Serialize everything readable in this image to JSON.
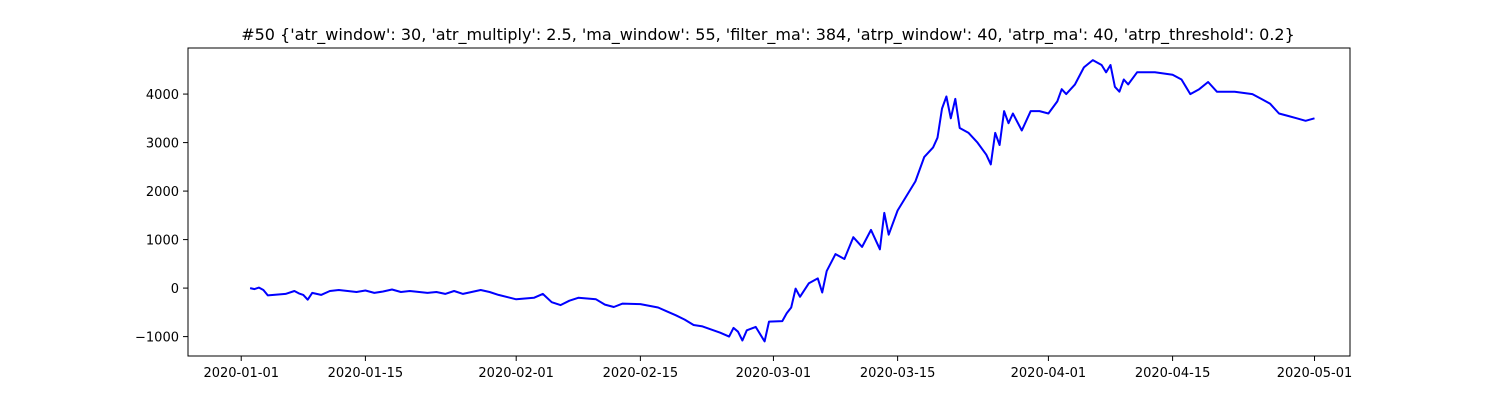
{
  "chart_data": {
    "type": "line",
    "title": "#50 {'atr_window': 30, 'atr_multiply': 2.5, 'ma_window': 55, 'filter_ma': 384, 'atrp_window': 40, 'atrp_ma': 40, 'atrp_threshold': 0.2}",
    "xlabel": "",
    "ylabel": "",
    "grid": false,
    "legend": "none",
    "line_color": "#0000ff",
    "xlim": [
      "2019-12-26",
      "2020-05-05"
    ],
    "ylim": [
      -1400,
      4950
    ],
    "x_ticks": [
      "2020-01-01",
      "2020-01-15",
      "2020-02-01",
      "2020-02-15",
      "2020-03-01",
      "2020-03-15",
      "2020-04-01",
      "2020-04-15",
      "2020-05-01"
    ],
    "y_ticks": [
      -1000,
      0,
      1000,
      2000,
      3000,
      4000
    ],
    "series": [
      {
        "points": [
          [
            "2020-01-02",
            0
          ],
          [
            "2020-01-02",
            -20
          ],
          [
            "2020-01-03",
            10
          ],
          [
            "2020-01-03",
            -40
          ],
          [
            "2020-01-04",
            -150
          ],
          [
            "2020-01-06",
            -120
          ],
          [
            "2020-01-07",
            -60
          ],
          [
            "2020-01-07",
            -110
          ],
          [
            "2020-01-08",
            -140
          ],
          [
            "2020-01-08",
            -240
          ],
          [
            "2020-01-09",
            -100
          ],
          [
            "2020-01-10",
            -140
          ],
          [
            "2020-01-11",
            -60
          ],
          [
            "2020-01-12",
            -40
          ],
          [
            "2020-01-13",
            -60
          ],
          [
            "2020-01-14",
            -80
          ],
          [
            "2020-01-15",
            -50
          ],
          [
            "2020-01-16",
            -100
          ],
          [
            "2020-01-17",
            -70
          ],
          [
            "2020-01-18",
            -30
          ],
          [
            "2020-01-19",
            -80
          ],
          [
            "2020-01-20",
            -60
          ],
          [
            "2020-01-22",
            -100
          ],
          [
            "2020-01-23",
            -80
          ],
          [
            "2020-01-24",
            -120
          ],
          [
            "2020-01-25",
            -60
          ],
          [
            "2020-01-26",
            -120
          ],
          [
            "2020-01-28",
            -40
          ],
          [
            "2020-01-29",
            -80
          ],
          [
            "2020-01-30",
            -140
          ],
          [
            "2020-02-01",
            -230
          ],
          [
            "2020-02-03",
            -200
          ],
          [
            "2020-02-04",
            -120
          ],
          [
            "2020-02-05",
            -290
          ],
          [
            "2020-02-06",
            -350
          ],
          [
            "2020-02-07",
            -260
          ],
          [
            "2020-02-08",
            -200
          ],
          [
            "2020-02-10",
            -230
          ],
          [
            "2020-02-11",
            -340
          ],
          [
            "2020-02-12",
            -390
          ],
          [
            "2020-02-13",
            -320
          ],
          [
            "2020-02-15",
            -330
          ],
          [
            "2020-02-17",
            -400
          ],
          [
            "2020-02-18",
            -480
          ],
          [
            "2020-02-19",
            -560
          ],
          [
            "2020-02-20",
            -650
          ],
          [
            "2020-02-21",
            -760
          ],
          [
            "2020-02-22",
            -790
          ],
          [
            "2020-02-24",
            -920
          ],
          [
            "2020-02-25",
            -1000
          ],
          [
            "2020-02-25",
            -820
          ],
          [
            "2020-02-26",
            -900
          ],
          [
            "2020-02-26",
            -1080
          ],
          [
            "2020-02-27",
            -870
          ],
          [
            "2020-02-28",
            -800
          ],
          [
            "2020-02-29",
            -1100
          ],
          [
            "2020-02-29",
            -690
          ],
          [
            "2020-03-02",
            -680
          ],
          [
            "2020-03-02",
            -520
          ],
          [
            "2020-03-03",
            -400
          ],
          [
            "2020-03-03",
            -10
          ],
          [
            "2020-03-04",
            -180
          ],
          [
            "2020-03-05",
            100
          ],
          [
            "2020-03-06",
            200
          ],
          [
            "2020-03-06",
            -90
          ],
          [
            "2020-03-07",
            350
          ],
          [
            "2020-03-08",
            700
          ],
          [
            "2020-03-09",
            600
          ],
          [
            "2020-03-10",
            1050
          ],
          [
            "2020-03-11",
            850
          ],
          [
            "2020-03-12",
            1200
          ],
          [
            "2020-03-13",
            800
          ],
          [
            "2020-03-13",
            1550
          ],
          [
            "2020-03-14",
            1100
          ],
          [
            "2020-03-15",
            1600
          ],
          [
            "2020-03-17",
            2200
          ],
          [
            "2020-03-18",
            2700
          ],
          [
            "2020-03-19",
            2900
          ],
          [
            "2020-03-19",
            3100
          ],
          [
            "2020-03-20",
            3700
          ],
          [
            "2020-03-20",
            3950
          ],
          [
            "2020-03-21",
            3500
          ],
          [
            "2020-03-21",
            3900
          ],
          [
            "2020-03-22",
            3300
          ],
          [
            "2020-03-23",
            3200
          ],
          [
            "2020-03-24",
            3000
          ],
          [
            "2020-03-25",
            2750
          ],
          [
            "2020-03-25",
            2550
          ],
          [
            "2020-03-26",
            3200
          ],
          [
            "2020-03-26",
            2950
          ],
          [
            "2020-03-27",
            3650
          ],
          [
            "2020-03-27",
            3400
          ],
          [
            "2020-03-28",
            3600
          ],
          [
            "2020-03-29",
            3250
          ],
          [
            "2020-03-30",
            3650
          ],
          [
            "2020-03-31",
            3650
          ],
          [
            "2020-04-01",
            3600
          ],
          [
            "2020-04-02",
            3850
          ],
          [
            "2020-04-02",
            4100
          ],
          [
            "2020-04-03",
            4000
          ],
          [
            "2020-04-04",
            4200
          ],
          [
            "2020-04-05",
            4550
          ],
          [
            "2020-04-06",
            4700
          ],
          [
            "2020-04-07",
            4600
          ],
          [
            "2020-04-07",
            4450
          ],
          [
            "2020-04-08",
            4600
          ],
          [
            "2020-04-08",
            4150
          ],
          [
            "2020-04-09",
            4050
          ],
          [
            "2020-04-09",
            4300
          ],
          [
            "2020-04-10",
            4200
          ],
          [
            "2020-04-11",
            4450
          ],
          [
            "2020-04-13",
            4450
          ],
          [
            "2020-04-15",
            4400
          ],
          [
            "2020-04-16",
            4300
          ],
          [
            "2020-04-16",
            4150
          ],
          [
            "2020-04-17",
            4000
          ],
          [
            "2020-04-18",
            4100
          ],
          [
            "2020-04-19",
            4250
          ],
          [
            "2020-04-20",
            4050
          ],
          [
            "2020-04-22",
            4050
          ],
          [
            "2020-04-24",
            4000
          ],
          [
            "2020-04-25",
            3900
          ],
          [
            "2020-04-26",
            3800
          ],
          [
            "2020-04-27",
            3600
          ],
          [
            "2020-04-28",
            3550
          ],
          [
            "2020-04-29",
            3500
          ],
          [
            "2020-04-30",
            3450
          ],
          [
            "2020-05-01",
            3500
          ]
        ]
      }
    ]
  }
}
